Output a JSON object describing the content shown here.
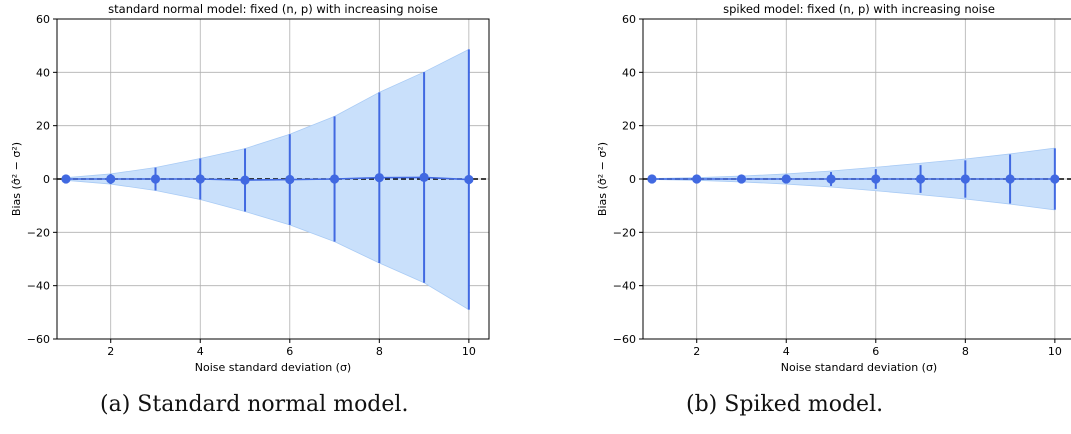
{
  "chart_data": [
    {
      "type": "line",
      "title": "standard normal model: fixed (n, p) with increasing noise",
      "xlabel": "Noise standard deviation (σ)",
      "ylabel": "Bias (σ̂² − σ²)",
      "xlim": [
        0.8,
        10.45
      ],
      "ylim": [
        -60,
        60
      ],
      "xticks": [
        2,
        4,
        6,
        8,
        10
      ],
      "yticks": [
        -60,
        -40,
        -20,
        0,
        20,
        40,
        60
      ],
      "grid": true,
      "reference_line": 0,
      "series": [
        {
          "x": [
            1,
            2,
            3,
            4,
            5,
            6,
            7,
            8,
            9,
            10
          ],
          "values": [
            0.0,
            0.0,
            0.0,
            0.0,
            -0.4,
            -0.2,
            0.0,
            0.5,
            0.6,
            -0.2
          ],
          "error": [
            0.5,
            1.9,
            4.3,
            7.7,
            11.8,
            17.0,
            23.5,
            32.0,
            39.5,
            48.8
          ],
          "band": [
            0.5,
            1.9,
            4.3,
            7.7,
            11.8,
            17.0,
            23.5,
            32.0,
            39.5,
            48.8
          ]
        }
      ]
    },
    {
      "type": "line",
      "title": "spiked model: fixed (n, p) with increasing noise",
      "xlabel": "Noise standard deviation (σ)",
      "ylabel": "Bias (σ̂² − σ²)",
      "xlim": [
        0.8,
        10.45
      ],
      "ylim": [
        -60,
        60
      ],
      "xticks": [
        2,
        4,
        6,
        8,
        10
      ],
      "yticks": [
        -60,
        -40,
        -20,
        0,
        20,
        40,
        60
      ],
      "grid": true,
      "reference_line": 0,
      "series": [
        {
          "x": [
            1,
            2,
            3,
            4,
            5,
            6,
            7,
            8,
            9,
            10
          ],
          "values": [
            0.0,
            0.0,
            0.0,
            0.0,
            0.0,
            0.0,
            0.0,
            0.0,
            0.0,
            0.0
          ],
          "error": [
            0.2,
            0.5,
            1.0,
            1.6,
            2.6,
            3.7,
            5.2,
            7.0,
            9.2,
            11.5
          ],
          "band": [
            0.2,
            0.5,
            1.1,
            1.9,
            3.0,
            4.4,
            5.9,
            7.5,
            9.4,
            11.6
          ]
        }
      ]
    }
  ],
  "captions": {
    "a": "(a) Standard normal model.",
    "b": "(b) Spiked model."
  },
  "colors": {
    "marker": "#4169E1",
    "band": "#C9E0FB",
    "band_edge": "#A9CBF5",
    "grid": "#b0b0b0",
    "reference": "#000000"
  }
}
